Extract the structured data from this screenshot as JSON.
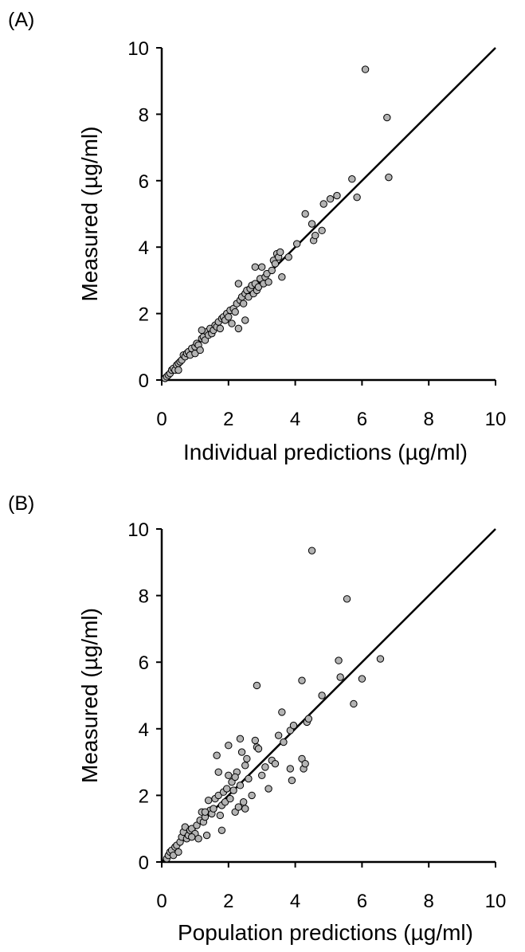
{
  "chart_data": [
    {
      "type": "scatter",
      "panel_label": "(A)",
      "xlabel": "Individual predictions (µg/ml)",
      "ylabel": "Measured (µg/ml)",
      "xlim": [
        0,
        10
      ],
      "ylim": [
        0,
        10
      ],
      "xticks": [
        "0",
        "2",
        "4",
        "6",
        "8",
        "10"
      ],
      "yticks": [
        "0",
        "2",
        "4",
        "6",
        "8",
        "10"
      ],
      "grid": false,
      "reference_line": {
        "type": "identity",
        "from": [
          0,
          0
        ],
        "to": [
          10,
          10
        ]
      },
      "points": [
        [
          0.1,
          0.05
        ],
        [
          0.15,
          0.1
        ],
        [
          0.2,
          0.15
        ],
        [
          0.25,
          0.2
        ],
        [
          0.3,
          0.3
        ],
        [
          0.35,
          0.35
        ],
        [
          0.4,
          0.3
        ],
        [
          0.45,
          0.45
        ],
        [
          0.5,
          0.5
        ],
        [
          0.5,
          0.3
        ],
        [
          0.55,
          0.55
        ],
        [
          0.6,
          0.6
        ],
        [
          0.65,
          0.75
        ],
        [
          0.7,
          0.7
        ],
        [
          0.75,
          0.8
        ],
        [
          0.8,
          0.85
        ],
        [
          0.85,
          0.75
        ],
        [
          0.9,
          0.95
        ],
        [
          1.0,
          1.0
        ],
        [
          1.0,
          0.8
        ],
        [
          1.05,
          1.1
        ],
        [
          1.1,
          1.05
        ],
        [
          1.15,
          0.9
        ],
        [
          1.2,
          1.25
        ],
        [
          1.25,
          1.3
        ],
        [
          1.3,
          1.2
        ],
        [
          1.35,
          1.45
        ],
        [
          1.4,
          1.35
        ],
        [
          1.45,
          1.55
        ],
        [
          1.5,
          1.4
        ],
        [
          1.55,
          1.5
        ],
        [
          1.6,
          1.65
        ],
        [
          1.65,
          1.6
        ],
        [
          1.7,
          1.75
        ],
        [
          1.75,
          1.55
        ],
        [
          1.8,
          1.85
        ],
        [
          1.85,
          1.9
        ],
        [
          1.9,
          1.8
        ],
        [
          1.95,
          2.0
        ],
        [
          2.0,
          1.9
        ],
        [
          2.05,
          2.1
        ],
        [
          2.1,
          1.7
        ],
        [
          2.15,
          2.15
        ],
        [
          2.2,
          2.05
        ],
        [
          2.25,
          2.3
        ],
        [
          2.3,
          1.55
        ],
        [
          2.35,
          2.4
        ],
        [
          2.4,
          2.5
        ],
        [
          2.45,
          2.3
        ],
        [
          2.5,
          1.8
        ],
        [
          2.5,
          2.6
        ],
        [
          2.55,
          2.7
        ],
        [
          2.6,
          2.5
        ],
        [
          2.65,
          2.75
        ],
        [
          2.7,
          2.85
        ],
        [
          2.75,
          2.6
        ],
        [
          2.8,
          2.9
        ],
        [
          2.8,
          3.4
        ],
        [
          2.85,
          2.7
        ],
        [
          2.9,
          2.8
        ],
        [
          2.95,
          3.05
        ],
        [
          3.0,
          3.4
        ],
        [
          3.05,
          2.9
        ],
        [
          3.1,
          3.1
        ],
        [
          3.15,
          3.2
        ],
        [
          3.2,
          2.95
        ],
        [
          3.3,
          3.3
        ],
        [
          3.35,
          3.6
        ],
        [
          3.4,
          3.5
        ],
        [
          3.45,
          3.8
        ],
        [
          3.5,
          3.7
        ],
        [
          3.55,
          3.85
        ],
        [
          3.6,
          3.1
        ],
        [
          3.8,
          3.7
        ],
        [
          4.05,
          4.1
        ],
        [
          4.3,
          5.0
        ],
        [
          4.5,
          4.7
        ],
        [
          4.55,
          4.2
        ],
        [
          4.6,
          4.35
        ],
        [
          4.8,
          4.5
        ],
        [
          4.85,
          5.3
        ],
        [
          5.05,
          5.45
        ],
        [
          5.25,
          5.55
        ],
        [
          5.7,
          6.05
        ],
        [
          5.85,
          5.5
        ],
        [
          6.1,
          9.35
        ],
        [
          6.75,
          7.9
        ],
        [
          6.8,
          6.1
        ],
        [
          2.3,
          2.9
        ],
        [
          1.2,
          1.5
        ]
      ]
    },
    {
      "type": "scatter",
      "panel_label": "(B)",
      "xlabel": "Population predictions (µg/ml)",
      "ylabel": "Measured (µg/ml)",
      "xlim": [
        0,
        10
      ],
      "ylim": [
        0,
        10
      ],
      "xticks": [
        "0",
        "2",
        "4",
        "6",
        "8",
        "10"
      ],
      "yticks": [
        "0",
        "2",
        "4",
        "6",
        "8",
        "10"
      ],
      "grid": false,
      "reference_line": {
        "type": "identity",
        "from": [
          0,
          0
        ],
        "to": [
          10,
          10
        ]
      },
      "points": [
        [
          0.15,
          0.1
        ],
        [
          0.2,
          0.2
        ],
        [
          0.25,
          0.3
        ],
        [
          0.3,
          0.35
        ],
        [
          0.35,
          0.2
        ],
        [
          0.4,
          0.45
        ],
        [
          0.45,
          0.5
        ],
        [
          0.5,
          0.3
        ],
        [
          0.55,
          0.6
        ],
        [
          0.6,
          0.75
        ],
        [
          0.65,
          0.9
        ],
        [
          0.7,
          1.05
        ],
        [
          0.75,
          0.7
        ],
        [
          0.8,
          0.8
        ],
        [
          0.85,
          0.95
        ],
        [
          0.9,
          1.0
        ],
        [
          1.0,
          0.85
        ],
        [
          1.05,
          1.1
        ],
        [
          1.1,
          0.7
        ],
        [
          1.15,
          1.25
        ],
        [
          1.2,
          1.5
        ],
        [
          1.25,
          1.2
        ],
        [
          1.3,
          1.35
        ],
        [
          1.35,
          0.8
        ],
        [
          1.4,
          1.85
        ],
        [
          1.45,
          1.55
        ],
        [
          1.5,
          1.45
        ],
        [
          1.55,
          1.6
        ],
        [
          1.6,
          1.9
        ],
        [
          1.65,
          3.2
        ],
        [
          1.7,
          2.0
        ],
        [
          1.7,
          2.7
        ],
        [
          1.75,
          1.4
        ],
        [
          1.8,
          1.7
        ],
        [
          1.8,
          0.95
        ],
        [
          1.85,
          2.1
        ],
        [
          1.9,
          1.8
        ],
        [
          1.95,
          2.2
        ],
        [
          2.0,
          3.5
        ],
        [
          2.0,
          2.6
        ],
        [
          2.05,
          1.9
        ],
        [
          2.1,
          2.4
        ],
        [
          2.15,
          2.15
        ],
        [
          2.2,
          1.5
        ],
        [
          2.25,
          2.7
        ],
        [
          2.3,
          1.65
        ],
        [
          2.35,
          3.7
        ],
        [
          2.35,
          2.3
        ],
        [
          2.4,
          3.3
        ],
        [
          2.45,
          1.8
        ],
        [
          2.5,
          2.9
        ],
        [
          2.5,
          1.6
        ],
        [
          2.55,
          3.1
        ],
        [
          2.6,
          2.5
        ],
        [
          2.7,
          2.0
        ],
        [
          2.8,
          3.65
        ],
        [
          2.85,
          3.45
        ],
        [
          2.85,
          5.3
        ],
        [
          2.9,
          3.4
        ],
        [
          3.0,
          2.6
        ],
        [
          3.1,
          2.85
        ],
        [
          3.2,
          2.2
        ],
        [
          3.3,
          3.05
        ],
        [
          3.4,
          2.95
        ],
        [
          3.5,
          3.8
        ],
        [
          3.6,
          4.5
        ],
        [
          3.65,
          3.6
        ],
        [
          3.85,
          3.95
        ],
        [
          3.85,
          2.8
        ],
        [
          3.9,
          2.45
        ],
        [
          3.95,
          4.1
        ],
        [
          4.2,
          5.45
        ],
        [
          4.2,
          3.1
        ],
        [
          4.25,
          2.8
        ],
        [
          4.3,
          2.95
        ],
        [
          4.35,
          4.2
        ],
        [
          4.4,
          4.3
        ],
        [
          4.5,
          9.35
        ],
        [
          4.8,
          5.0
        ],
        [
          5.3,
          6.05
        ],
        [
          5.35,
          5.55
        ],
        [
          5.55,
          7.9
        ],
        [
          5.75,
          4.75
        ],
        [
          6.0,
          5.5
        ],
        [
          6.55,
          6.1
        ],
        [
          2.2,
          2.55
        ],
        [
          1.3,
          1.5
        ],
        [
          0.9,
          0.75
        ]
      ]
    }
  ]
}
